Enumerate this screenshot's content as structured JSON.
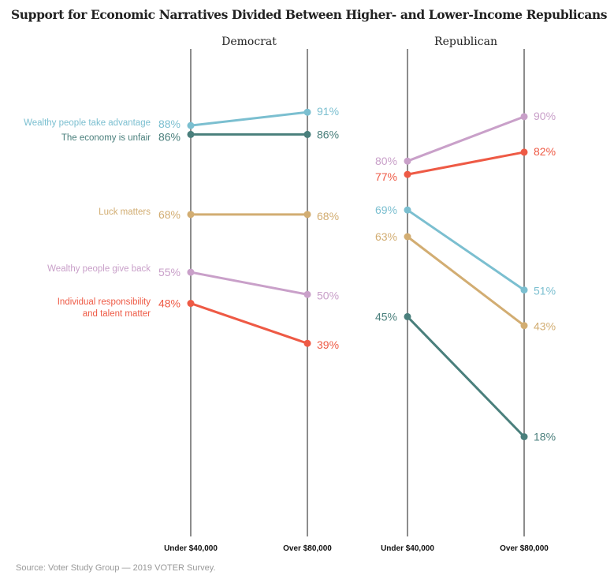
{
  "chart_data": {
    "type": "line",
    "title": "Support for Economic Narratives Divided Between Higher- and Lower-Income Republicans",
    "source": "Source: Voter Study Group — 2019 VOTER Survey.",
    "x_categories": [
      "Under $40,000",
      "Over $80,000"
    ],
    "ylim": [
      0,
      100
    ],
    "grid": false,
    "panels": [
      {
        "name": "Democrat",
        "series": [
          {
            "name": "Wealthy people take advantage",
            "color": "#7bbfd0",
            "values": [
              88,
              91
            ],
            "labels": [
              "88%",
              "91%"
            ]
          },
          {
            "name": "The economy is unfair",
            "color": "#4a7f7c",
            "values": [
              86,
              86
            ],
            "labels": [
              "86%",
              "86%"
            ]
          },
          {
            "name": "Luck matters",
            "color": "#d2ad72",
            "values": [
              68,
              68
            ],
            "labels": [
              "68%",
              "68%"
            ]
          },
          {
            "name": "Wealthy people give back",
            "color": "#c9a0c9",
            "values": [
              55,
              50
            ],
            "labels": [
              "55%",
              "50%"
            ]
          },
          {
            "name": "Individual responsibility and talent matter",
            "name_lines": [
              "Individual responsibility",
              "and talent matter"
            ],
            "color": "#ee5a45",
            "values": [
              48,
              39
            ],
            "labels": [
              "48%",
              "39%"
            ]
          }
        ]
      },
      {
        "name": "Republican",
        "series": [
          {
            "name": "Wealthy people take advantage",
            "color": "#7bbfd0",
            "values": [
              69,
              51
            ],
            "labels": [
              "69%",
              "51%"
            ]
          },
          {
            "name": "The economy is unfair",
            "color": "#4a7f7c",
            "values": [
              45,
              18
            ],
            "labels": [
              "45%",
              "18%"
            ]
          },
          {
            "name": "Luck matters",
            "color": "#d2ad72",
            "values": [
              63,
              43
            ],
            "labels": [
              "63%",
              "43%"
            ]
          },
          {
            "name": "Wealthy people give back",
            "color": "#c9a0c9",
            "values": [
              80,
              90
            ],
            "labels": [
              "80%",
              "90%"
            ]
          },
          {
            "name": "Individual responsibility and talent matter",
            "color": "#ee5a45",
            "values": [
              77,
              82
            ],
            "labels": [
              "77%",
              "82%"
            ]
          }
        ]
      }
    ]
  }
}
